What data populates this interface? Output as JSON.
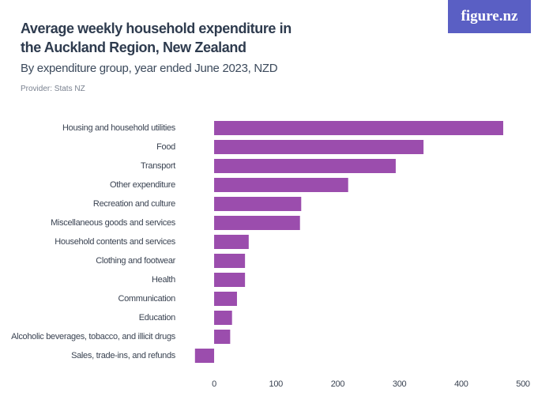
{
  "chart_data": {
    "type": "bar",
    "orientation": "horizontal",
    "title": "Average weekly household expenditure in the Auckland Region, New Zealand",
    "subtitle": "By expenditure group, year ended June 2023, NZD",
    "provider": "Provider: Stats NZ",
    "logo": "figure.nz",
    "categories": [
      "Housing and household utilities",
      "Food",
      "Transport",
      "Other expenditure",
      "Recreation and culture",
      "Miscellaneous goods and services",
      "Household contents and services",
      "Clothing and footwear",
      "Health",
      "Communication",
      "Education",
      "Alcoholic beverages, tobacco, and illicit drugs",
      "Sales, trade-ins, and refunds"
    ],
    "values": [
      468,
      339,
      294,
      217,
      141,
      139,
      56,
      50,
      50,
      37,
      29,
      26,
      -31
    ],
    "color": "#9b4dad",
    "xlim": [
      -31,
      500
    ],
    "xticks": [
      0,
      100,
      200,
      300,
      400,
      500
    ],
    "grid": false
  }
}
